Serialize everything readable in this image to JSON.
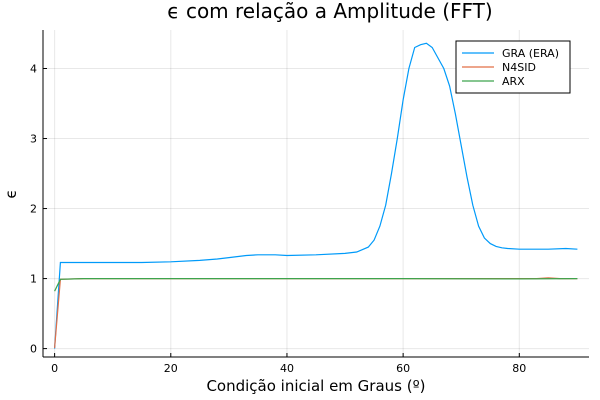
{
  "chart_data": {
    "type": "line",
    "title": "ϵ com relação a Amplitude (FFT)",
    "xlabel": "Condição inicial em Graus (º)",
    "ylabel": "ϵ",
    "xlim": [
      -2,
      92
    ],
    "ylim": [
      -0.12,
      4.55
    ],
    "xticks": [
      0,
      20,
      40,
      60,
      80
    ],
    "yticks": [
      0,
      1,
      2,
      3,
      4
    ],
    "grid": true,
    "legend_position": "top-right",
    "series": [
      {
        "name": "GRA (ERA)",
        "color": "#009af9",
        "x": [
          0,
          1,
          5,
          10,
          15,
          20,
          25,
          28,
          30,
          33,
          35,
          38,
          40,
          45,
          50,
          52,
          54,
          55,
          56,
          57,
          58,
          59,
          60,
          61,
          62,
          63,
          64,
          65,
          66,
          67,
          68,
          69,
          70,
          71,
          72,
          73,
          74,
          75,
          76,
          77,
          78,
          80,
          82,
          85,
          88,
          90
        ],
        "y": [
          0,
          1.23,
          1.23,
          1.23,
          1.23,
          1.24,
          1.26,
          1.28,
          1.3,
          1.33,
          1.34,
          1.34,
          1.33,
          1.34,
          1.36,
          1.38,
          1.45,
          1.55,
          1.75,
          2.05,
          2.5,
          3.0,
          3.55,
          4.0,
          4.3,
          4.34,
          4.36,
          4.3,
          4.15,
          4.0,
          3.75,
          3.35,
          2.9,
          2.45,
          2.05,
          1.75,
          1.58,
          1.5,
          1.46,
          1.44,
          1.43,
          1.42,
          1.42,
          1.42,
          1.43,
          1.42
        ]
      },
      {
        "name": "N4SID",
        "color": "#e26f46",
        "x": [
          0,
          1,
          5,
          20,
          40,
          60,
          80,
          83,
          85,
          87,
          90
        ],
        "y": [
          0.01,
          0.99,
          1.0,
          1.0,
          1.0,
          1.0,
          1.0,
          1.0,
          1.01,
          1.0,
          1.0
        ]
      },
      {
        "name": "ARX",
        "color": "#3da44d",
        "x": [
          0,
          1,
          5,
          20,
          40,
          60,
          80,
          90
        ],
        "y": [
          0.82,
          0.99,
          1.0,
          1.0,
          1.0,
          1.0,
          0.995,
          1.0
        ]
      }
    ]
  }
}
